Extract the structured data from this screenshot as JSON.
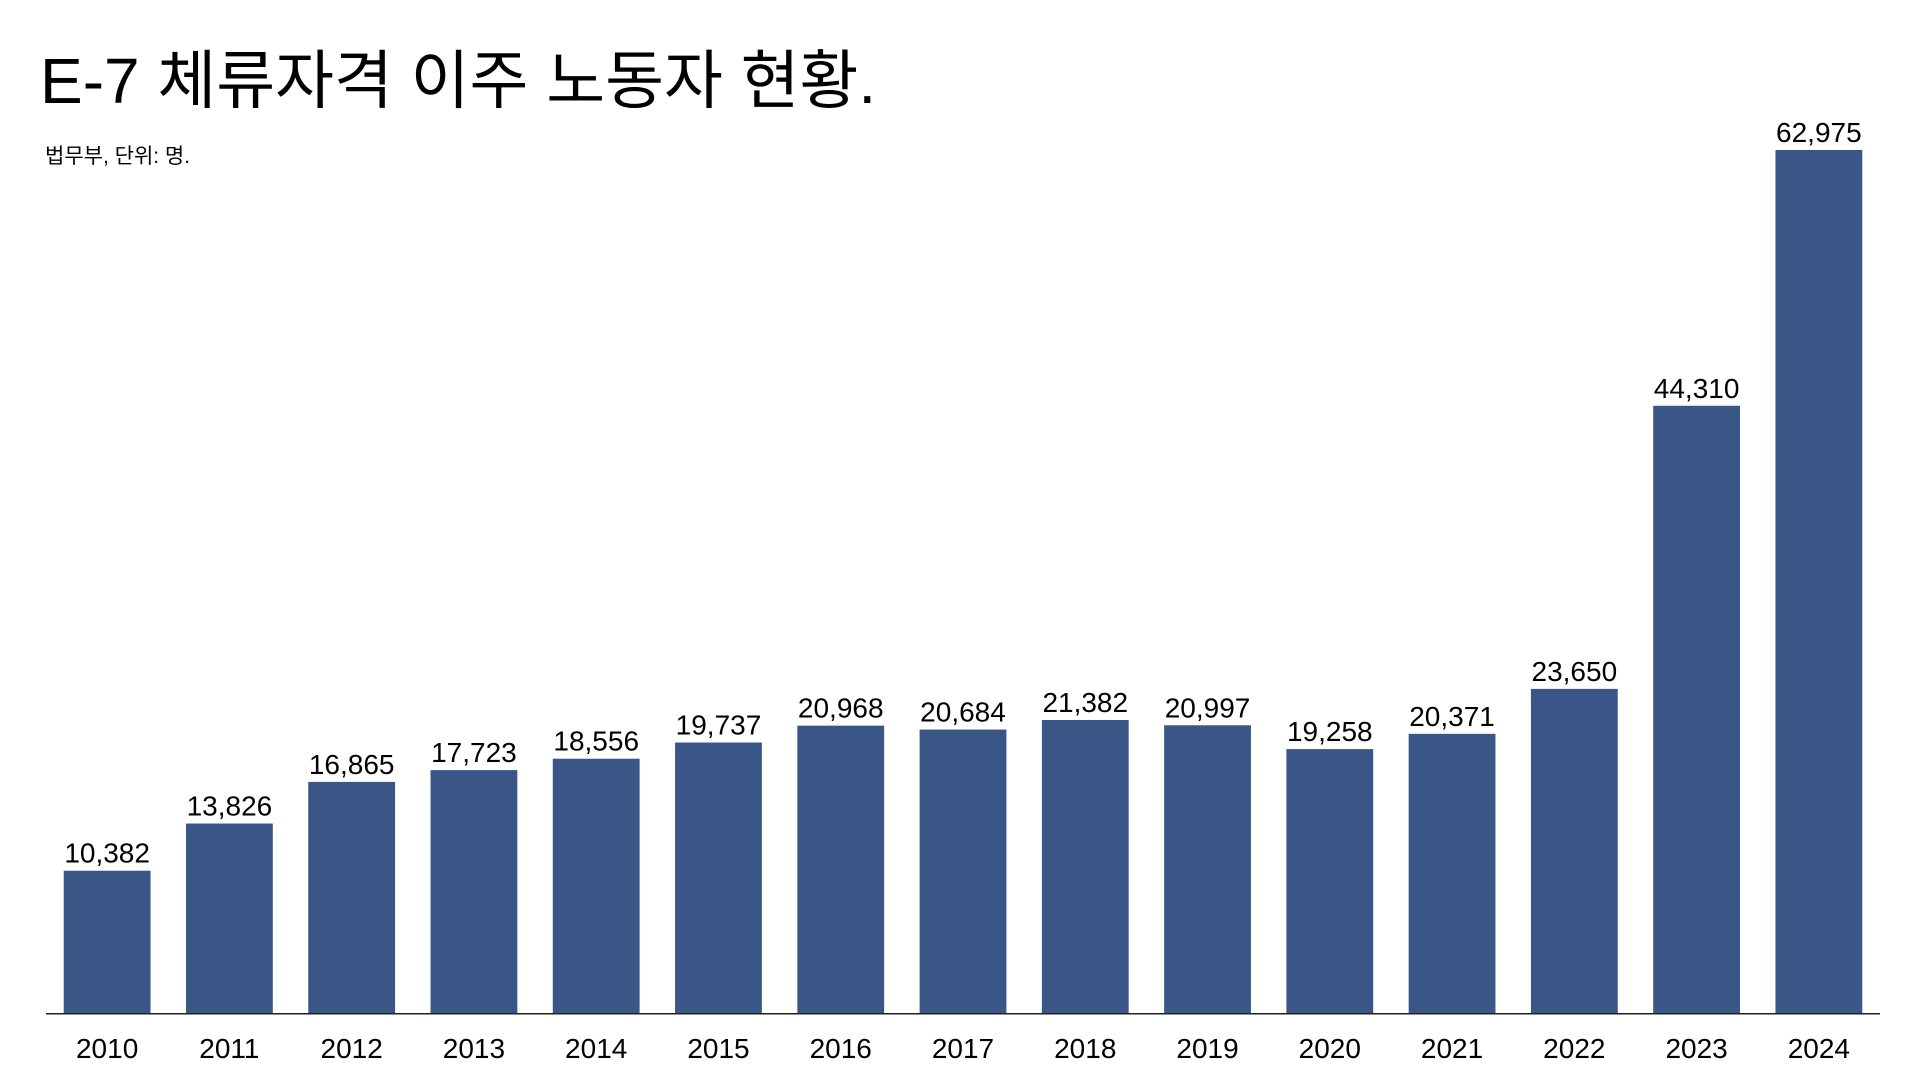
{
  "header": {
    "title": "E-7 체류자격 이주 노동자 현황.",
    "subtitle": "법무부, 단위: 명."
  },
  "chart_data": {
    "type": "bar",
    "title": "E-7 체류자격 이주 노동자 현황.",
    "subtitle": "법무부, 단위: 명.",
    "categories": [
      "2010",
      "2011",
      "2012",
      "2013",
      "2014",
      "2015",
      "2016",
      "2017",
      "2018",
      "2019",
      "2020",
      "2021",
      "2022",
      "2023",
      "2024"
    ],
    "values": [
      10382,
      13826,
      16865,
      17723,
      18556,
      19737,
      20968,
      20684,
      21382,
      20997,
      19258,
      20371,
      23650,
      44310,
      62975
    ],
    "value_labels": [
      "10,382",
      "13,826",
      "16,865",
      "17,723",
      "18,556",
      "19,737",
      "20,968",
      "20,684",
      "21,382",
      "20,997",
      "19,258",
      "20,371",
      "23,650",
      "44,310",
      "62,975"
    ],
    "xlabel": "",
    "ylabel": "",
    "ylim": [
      0,
      62975
    ],
    "bar_color": "#3a5687",
    "grid": false,
    "legend": "none"
  }
}
